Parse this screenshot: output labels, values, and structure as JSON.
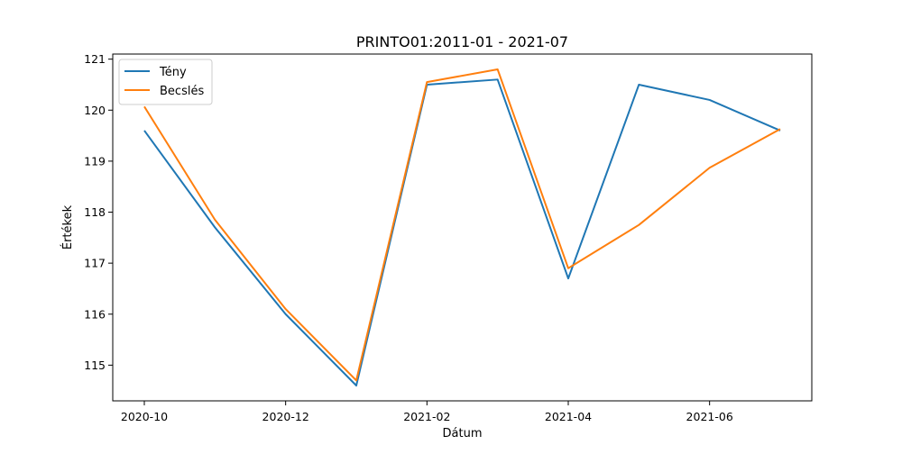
{
  "chart_data": {
    "type": "line",
    "title": "PRINTO01:2011-01 - 2021-07",
    "xlabel": "Dátum",
    "ylabel": "Értékek",
    "x": [
      "2020-10",
      "2020-11",
      "2020-12",
      "2021-01",
      "2021-02",
      "2021-03",
      "2021-04",
      "2021-05",
      "2021-06",
      "2021-07"
    ],
    "x_ticks": [
      "2020-10",
      "2020-12",
      "2021-02",
      "2021-04",
      "2021-06"
    ],
    "y_ticks": [
      115,
      116,
      117,
      118,
      119,
      120,
      121
    ],
    "ylim": [
      114.3,
      121.1
    ],
    "grid": false,
    "legend_position": "top-left",
    "series": [
      {
        "name": "Tény",
        "color": "#1f77b4",
        "values": [
          119.6,
          117.7,
          116.0,
          114.6,
          120.5,
          120.6,
          116.7,
          120.5,
          120.2,
          119.6
        ]
      },
      {
        "name": "Becslés",
        "color": "#ff7f0e",
        "values": [
          120.07,
          117.85,
          116.1,
          114.7,
          120.55,
          120.8,
          116.9,
          117.75,
          118.87,
          119.63
        ]
      }
    ]
  }
}
